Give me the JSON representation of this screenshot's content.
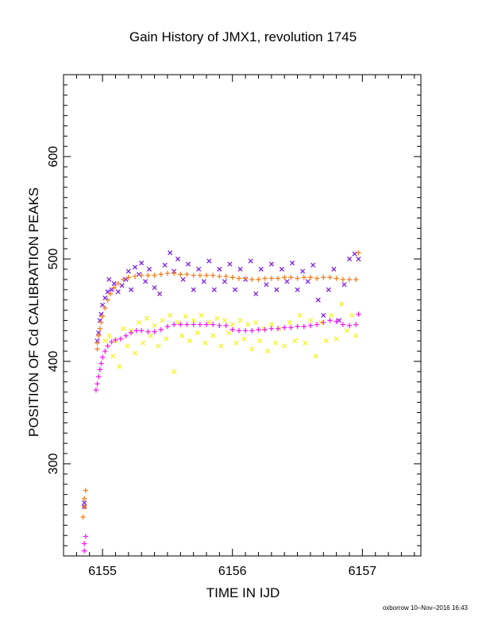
{
  "chart_data": {
    "type": "scatter",
    "title": "Gain History of JMX1, revolution 1745",
    "xlabel": "TIME IN IJD",
    "ylabel": "POSITION OF Cd CALIBRATION PEAKS",
    "xlim": [
      6154.7,
      6157.45
    ],
    "ylim": [
      210,
      680
    ],
    "xticks": [
      6155,
      6156,
      6157
    ],
    "xtick_labels": [
      "6155",
      "6156",
      "6157"
    ],
    "yticks": [
      300,
      400,
      500,
      600
    ],
    "ytick_labels": [
      "300",
      "400",
      "500",
      "600"
    ],
    "grid": false,
    "legend": "none",
    "series": [
      {
        "marker": "x",
        "color": "#7f1fe6",
        "points": [
          [
            6154.86,
            262
          ],
          [
            6154.86,
            258
          ],
          [
            6154.96,
            420
          ],
          [
            6154.97,
            428
          ],
          [
            6154.98,
            440
          ],
          [
            6154.99,
            446
          ],
          [
            6155.0,
            455
          ],
          [
            6155.02,
            462
          ],
          [
            6155.04,
            468
          ],
          [
            6155.05,
            480
          ],
          [
            6155.07,
            470
          ],
          [
            6155.09,
            476
          ],
          [
            6155.12,
            468
          ],
          [
            6155.15,
            474
          ],
          [
            6155.18,
            480
          ],
          [
            6155.2,
            488
          ],
          [
            6155.22,
            470
          ],
          [
            6155.25,
            492
          ],
          [
            6155.28,
            485
          ],
          [
            6155.3,
            496
          ],
          [
            6155.33,
            478
          ],
          [
            6155.36,
            490
          ],
          [
            6155.4,
            472
          ],
          [
            6155.44,
            466
          ],
          [
            6155.48,
            494
          ],
          [
            6155.52,
            506
          ],
          [
            6155.55,
            488
          ],
          [
            6155.58,
            500
          ],
          [
            6155.62,
            480
          ],
          [
            6155.66,
            495
          ],
          [
            6155.7,
            470
          ],
          [
            6155.74,
            490
          ],
          [
            6155.78,
            478
          ],
          [
            6155.82,
            498
          ],
          [
            6155.86,
            470
          ],
          [
            6155.9,
            490
          ],
          [
            6155.94,
            478
          ],
          [
            6155.98,
            495
          ],
          [
            6156.02,
            470
          ],
          [
            6156.06,
            490
          ],
          [
            6156.1,
            480
          ],
          [
            6156.14,
            498
          ],
          [
            6156.18,
            466
          ],
          [
            6156.22,
            490
          ],
          [
            6156.26,
            475
          ],
          [
            6156.3,
            495
          ],
          [
            6156.34,
            470
          ],
          [
            6156.38,
            490
          ],
          [
            6156.42,
            478
          ],
          [
            6156.46,
            496
          ],
          [
            6156.5,
            470
          ],
          [
            6156.54,
            488
          ],
          [
            6156.58,
            478
          ],
          [
            6156.62,
            494
          ],
          [
            6156.66,
            460
          ],
          [
            6156.7,
            445
          ],
          [
            6156.74,
            470
          ],
          [
            6156.78,
            490
          ],
          [
            6156.82,
            440
          ],
          [
            6156.86,
            475
          ],
          [
            6156.9,
            500
          ],
          [
            6156.94,
            505
          ],
          [
            6156.97,
            500
          ]
        ]
      },
      {
        "marker": "x",
        "color": "#f5f51f",
        "points": [
          [
            6155.02,
            420
          ],
          [
            6155.05,
            425
          ],
          [
            6155.08,
            405
          ],
          [
            6155.1,
            420
          ],
          [
            6155.13,
            395
          ],
          [
            6155.16,
            432
          ],
          [
            6155.19,
            415
          ],
          [
            6155.22,
            430
          ],
          [
            6155.25,
            408
          ],
          [
            6155.28,
            438
          ],
          [
            6155.31,
            418
          ],
          [
            6155.34,
            442
          ],
          [
            6155.37,
            425
          ],
          [
            6155.4,
            435
          ],
          [
            6155.43,
            415
          ],
          [
            6155.46,
            440
          ],
          [
            6155.49,
            422
          ],
          [
            6155.52,
            445
          ],
          [
            6155.55,
            390
          ],
          [
            6155.58,
            438
          ],
          [
            6155.61,
            425
          ],
          [
            6155.64,
            444
          ],
          [
            6155.67,
            420
          ],
          [
            6155.7,
            440
          ],
          [
            6155.73,
            428
          ],
          [
            6155.76,
            445
          ],
          [
            6155.79,
            418
          ],
          [
            6155.82,
            438
          ],
          [
            6155.85,
            425
          ],
          [
            6155.88,
            442
          ],
          [
            6155.91,
            415
          ],
          [
            6155.94,
            440
          ],
          [
            6155.97,
            428
          ],
          [
            6156.0,
            436
          ],
          [
            6156.03,
            418
          ],
          [
            6156.06,
            440
          ],
          [
            6156.09,
            422
          ],
          [
            6156.12,
            436
          ],
          [
            6156.15,
            412
          ],
          [
            6156.18,
            438
          ],
          [
            6156.21,
            420
          ],
          [
            6156.24,
            432
          ],
          [
            6156.27,
            410
          ],
          [
            6156.3,
            436
          ],
          [
            6156.33,
            418
          ],
          [
            6156.36,
            432
          ],
          [
            6156.4,
            415
          ],
          [
            6156.44,
            438
          ],
          [
            6156.48,
            420
          ],
          [
            6156.52,
            445
          ],
          [
            6156.56,
            418
          ],
          [
            6156.6,
            440
          ],
          [
            6156.64,
            405
          ],
          [
            6156.68,
            438
          ],
          [
            6156.72,
            420
          ],
          [
            6156.76,
            445
          ],
          [
            6156.8,
            422
          ],
          [
            6156.84,
            456
          ],
          [
            6156.88,
            430
          ],
          [
            6156.92,
            445
          ],
          [
            6156.95,
            425
          ]
        ]
      },
      {
        "marker": "+",
        "color": "#f57f1f",
        "points": [
          [
            6154.85,
            248
          ],
          [
            6154.86,
            258
          ],
          [
            6154.86,
            266
          ],
          [
            6154.87,
            274
          ],
          [
            6154.96,
            412
          ],
          [
            6154.96,
            418
          ],
          [
            6154.97,
            425
          ],
          [
            6154.98,
            432
          ],
          [
            6154.99,
            438
          ],
          [
            6155.0,
            444
          ],
          [
            6155.02,
            452
          ],
          [
            6155.04,
            460
          ],
          [
            6155.06,
            466
          ],
          [
            6155.09,
            472
          ],
          [
            6155.12,
            476
          ],
          [
            6155.16,
            480
          ],
          [
            6155.2,
            482
          ],
          [
            6155.25,
            483
          ],
          [
            6155.3,
            484
          ],
          [
            6155.35,
            484
          ],
          [
            6155.4,
            484
          ],
          [
            6155.45,
            485
          ],
          [
            6155.5,
            486
          ],
          [
            6155.55,
            486
          ],
          [
            6155.6,
            485
          ],
          [
            6155.65,
            485
          ],
          [
            6155.7,
            484
          ],
          [
            6155.75,
            484
          ],
          [
            6155.8,
            484
          ],
          [
            6155.85,
            484
          ],
          [
            6155.9,
            483
          ],
          [
            6155.95,
            483
          ],
          [
            6156.0,
            482
          ],
          [
            6156.05,
            481
          ],
          [
            6156.1,
            481
          ],
          [
            6156.15,
            480
          ],
          [
            6156.2,
            480
          ],
          [
            6156.25,
            481
          ],
          [
            6156.3,
            481
          ],
          [
            6156.35,
            481
          ],
          [
            6156.4,
            482
          ],
          [
            6156.45,
            482
          ],
          [
            6156.5,
            481
          ],
          [
            6156.55,
            482
          ],
          [
            6156.6,
            482
          ],
          [
            6156.65,
            481
          ],
          [
            6156.7,
            482
          ],
          [
            6156.75,
            482
          ],
          [
            6156.8,
            481
          ],
          [
            6156.85,
            480
          ],
          [
            6156.9,
            480
          ],
          [
            6156.95,
            480
          ],
          [
            6156.97,
            506
          ]
        ]
      },
      {
        "marker": "+",
        "color": "#f51ff5",
        "points": [
          [
            6154.86,
            215
          ],
          [
            6154.86,
            222
          ],
          [
            6154.87,
            229
          ],
          [
            6154.95,
            372
          ],
          [
            6154.96,
            378
          ],
          [
            6154.97,
            385
          ],
          [
            6154.98,
            392
          ],
          [
            6154.99,
            398
          ],
          [
            6155.0,
            404
          ],
          [
            6155.02,
            410
          ],
          [
            6155.04,
            415
          ],
          [
            6155.07,
            419
          ],
          [
            6155.1,
            421
          ],
          [
            6155.14,
            422
          ],
          [
            6155.18,
            425
          ],
          [
            6155.22,
            428
          ],
          [
            6155.26,
            430
          ],
          [
            6155.3,
            430
          ],
          [
            6155.35,
            429
          ],
          [
            6155.4,
            429
          ],
          [
            6155.45,
            431
          ],
          [
            6155.5,
            434
          ],
          [
            6155.55,
            436
          ],
          [
            6155.6,
            436
          ],
          [
            6155.65,
            436
          ],
          [
            6155.7,
            436
          ],
          [
            6155.75,
            436
          ],
          [
            6155.8,
            436
          ],
          [
            6155.85,
            436
          ],
          [
            6155.9,
            435
          ],
          [
            6155.95,
            435
          ],
          [
            6156.0,
            431
          ],
          [
            6156.05,
            430
          ],
          [
            6156.1,
            430
          ],
          [
            6156.15,
            430
          ],
          [
            6156.2,
            431
          ],
          [
            6156.25,
            431
          ],
          [
            6156.3,
            432
          ],
          [
            6156.35,
            432
          ],
          [
            6156.4,
            433
          ],
          [
            6156.45,
            433
          ],
          [
            6156.5,
            434
          ],
          [
            6156.55,
            434
          ],
          [
            6156.6,
            435
          ],
          [
            6156.65,
            436
          ],
          [
            6156.7,
            438
          ],
          [
            6156.75,
            440
          ],
          [
            6156.8,
            439
          ],
          [
            6156.85,
            436
          ],
          [
            6156.9,
            435
          ],
          [
            6156.95,
            436
          ],
          [
            6156.97,
            446
          ]
        ]
      }
    ]
  },
  "footer": "oxborrow 10–Nov–2016 16:43"
}
